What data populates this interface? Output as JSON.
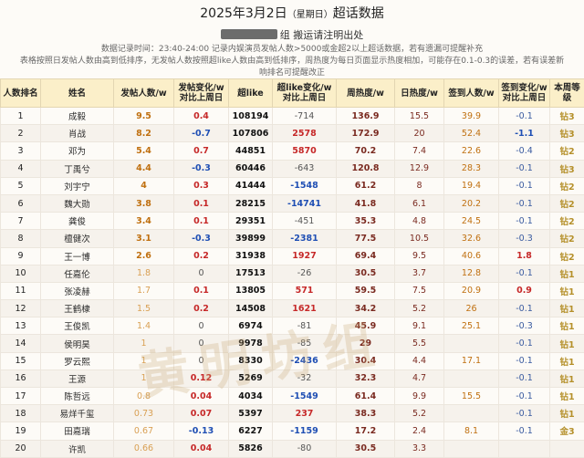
{
  "header": {
    "title_main": "2025年3月2日",
    "title_weekday": "（星期日）",
    "title_suffix": "超话数据",
    "subtitle_text": "组  搬运请注明出处",
    "note1": "数据记录时间：23:40-24:00  记录内娱演员发帖人数>5000或金超2以上超话数据，若有遗漏可提醒补充",
    "note2": "表格按照日发帖人数由高到低排序，无发帖人数按照超like人数由高到低排序，周热度为每日页面显示热度相加，可能存在0.1-0.3的误差，若有误差新",
    "note3": "响排名可提醒改正"
  },
  "table": {
    "headers": [
      "人数排名",
      "姓名",
      "发帖人数/w",
      "发帖变化/w 对比上周日",
      "超like",
      "超like变化/w 对比上周日",
      "周热度/w",
      "日热度/w",
      "签到人数/w",
      "签到变化/w 对比上周日",
      "本周等级"
    ],
    "rows": [
      {
        "rank": "1",
        "name": "成毅",
        "posts": "9.5",
        "posts_change": "0.4",
        "like": "108194",
        "like_change": "-714",
        "weekly_heat": "136.9",
        "daily_heat": "15.5",
        "signin": "39.9",
        "signin_change": "-0.1",
        "level": "钻3"
      },
      {
        "rank": "2",
        "name": "肖战",
        "posts": "8.2",
        "posts_change": "-0.7",
        "like": "107806",
        "like_change": "2578",
        "weekly_heat": "172.9",
        "daily_heat": "20",
        "signin": "52.4",
        "signin_change": "-1.1",
        "level": "钻3"
      },
      {
        "rank": "3",
        "name": "邓为",
        "posts": "5.4",
        "posts_change": "0.7",
        "like": "44851",
        "like_change": "5870",
        "weekly_heat": "70.2",
        "daily_heat": "7.4",
        "signin": "22.6",
        "signin_change": "-0.4",
        "level": "钻2"
      },
      {
        "rank": "4",
        "name": "丁禹兮",
        "posts": "4.4",
        "posts_change": "-0.3",
        "like": "60446",
        "like_change": "-643",
        "weekly_heat": "120.8",
        "daily_heat": "12.9",
        "signin": "28.3",
        "signin_change": "-0.1",
        "level": "钻3"
      },
      {
        "rank": "5",
        "name": "刘宇宁",
        "posts": "4",
        "posts_change": "0.3",
        "like": "41444",
        "like_change": "-1548",
        "weekly_heat": "61.2",
        "daily_heat": "8",
        "signin": "19.4",
        "signin_change": "-0.1",
        "level": "钻2"
      },
      {
        "rank": "6",
        "name": "魏大勋",
        "posts": "3.8",
        "posts_change": "0.1",
        "like": "28215",
        "like_change": "-14741",
        "weekly_heat": "41.8",
        "daily_heat": "6.1",
        "signin": "20.2",
        "signin_change": "-0.1",
        "level": "钻2"
      },
      {
        "rank": "7",
        "name": "龚俊",
        "posts": "3.4",
        "posts_change": "0.1",
        "like": "29351",
        "like_change": "-451",
        "weekly_heat": "35.3",
        "daily_heat": "4.8",
        "signin": "24.5",
        "signin_change": "-0.1",
        "level": "钻2"
      },
      {
        "rank": "8",
        "name": "檀健次",
        "posts": "3.1",
        "posts_change": "-0.3",
        "like": "39899",
        "like_change": "-2381",
        "weekly_heat": "77.5",
        "daily_heat": "10.5",
        "signin": "32.6",
        "signin_change": "-0.3",
        "level": "钻2"
      },
      {
        "rank": "9",
        "name": "王一博",
        "posts": "2.6",
        "posts_change": "0.2",
        "like": "31938",
        "like_change": "1927",
        "weekly_heat": "69.4",
        "daily_heat": "9.5",
        "signin": "40.6",
        "signin_change": "1.8",
        "level": "钻2"
      },
      {
        "rank": "10",
        "name": "任嘉伦",
        "posts": "1.8",
        "posts_change": "0",
        "like": "17513",
        "like_change": "-26",
        "weekly_heat": "30.5",
        "daily_heat": "3.7",
        "signin": "12.8",
        "signin_change": "-0.1",
        "level": "钻1"
      },
      {
        "rank": "11",
        "name": "张凌赫",
        "posts": "1.7",
        "posts_change": "0.1",
        "like": "13805",
        "like_change": "571",
        "weekly_heat": "59.5",
        "daily_heat": "7.5",
        "signin": "20.9",
        "signin_change": "0.9",
        "level": "钻1"
      },
      {
        "rank": "12",
        "name": "王鹤棣",
        "posts": "1.5",
        "posts_change": "0.2",
        "like": "14508",
        "like_change": "1621",
        "weekly_heat": "34.2",
        "daily_heat": "5.2",
        "signin": "26",
        "signin_change": "-0.1",
        "level": "钻1"
      },
      {
        "rank": "13",
        "name": "王俊凯",
        "posts": "1.4",
        "posts_change": "0",
        "like": "6974",
        "like_change": "-81",
        "weekly_heat": "45.9",
        "daily_heat": "9.1",
        "signin": "25.1",
        "signin_change": "-0.3",
        "level": "钻1"
      },
      {
        "rank": "14",
        "name": "侯明昊",
        "posts": "1",
        "posts_change": "0",
        "like": "9978",
        "like_change": "-85",
        "weekly_heat": "29",
        "daily_heat": "5.5",
        "signin": "",
        "signin_change": "-0.1",
        "level": "钻1"
      },
      {
        "rank": "15",
        "name": "罗云熙",
        "posts": "1",
        "posts_change": "0",
        "like": "8330",
        "like_change": "-2436",
        "weekly_heat": "30.4",
        "daily_heat": "4.4",
        "signin": "17.1",
        "signin_change": "-0.1",
        "level": "钻1"
      },
      {
        "rank": "16",
        "name": "王源",
        "posts": "1",
        "posts_change": "0.12",
        "like": "5269",
        "like_change": "-32",
        "weekly_heat": "32.3",
        "daily_heat": "4.7",
        "signin": "",
        "signin_change": "-0.1",
        "level": "钻1"
      },
      {
        "rank": "17",
        "name": "陈哲远",
        "posts": "0.8",
        "posts_change": "0.04",
        "like": "4034",
        "like_change": "-1549",
        "weekly_heat": "61.4",
        "daily_heat": "9.9",
        "signin": "15.5",
        "signin_change": "-0.1",
        "level": "钻1"
      },
      {
        "rank": "18",
        "name": "易烊千玺",
        "posts": "0.73",
        "posts_change": "0.07",
        "like": "5397",
        "like_change": "237",
        "weekly_heat": "38.3",
        "daily_heat": "5.2",
        "signin": "",
        "signin_change": "-0.1",
        "level": "钻1"
      },
      {
        "rank": "19",
        "name": "田嘉瑞",
        "posts": "0.67",
        "posts_change": "-0.13",
        "like": "6227",
        "like_change": "-1159",
        "weekly_heat": "17.2",
        "daily_heat": "2.4",
        "signin": "8.1",
        "signin_change": "-0.1",
        "level": "金3"
      },
      {
        "rank": "20",
        "name": "许凯",
        "posts": "0.66",
        "posts_change": "0.04",
        "like": "5826",
        "like_change": "-80",
        "weekly_heat": "30.5",
        "daily_heat": "3.3",
        "signin": "",
        "signin_change": "",
        "level": ""
      }
    ]
  },
  "watermark": "黄明坊组"
}
